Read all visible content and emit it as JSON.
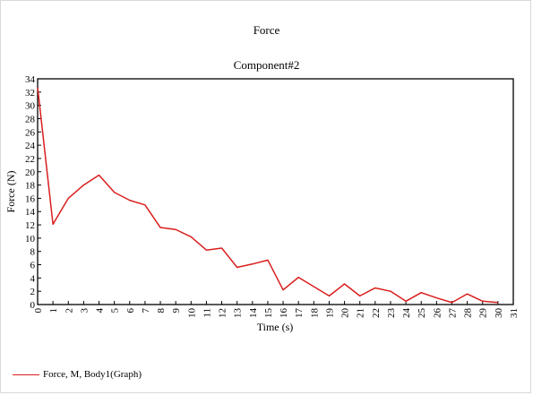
{
  "chart_data": {
    "type": "line",
    "title": "Force",
    "subtitle": "Component#2",
    "xlabel": "Time (s)",
    "ylabel": "Force (N)",
    "xlim": [
      0,
      31
    ],
    "ylim": [
      0,
      34
    ],
    "xticks": [
      0,
      1,
      2,
      3,
      4,
      5,
      6,
      7,
      8,
      9,
      10,
      11,
      12,
      13,
      14,
      15,
      16,
      17,
      18,
      19,
      20,
      21,
      22,
      23,
      24,
      25,
      26,
      27,
      28,
      29,
      30,
      31
    ],
    "yticks": [
      0,
      2,
      4,
      6,
      8,
      10,
      12,
      14,
      16,
      18,
      20,
      22,
      24,
      26,
      28,
      30,
      32,
      34
    ],
    "grid": false,
    "legend_position": "bottom-left",
    "series": [
      {
        "name": "Force, M, Body1(Graph)",
        "color": "#d91e1e",
        "x": [
          0,
          1,
          2,
          3,
          4,
          5,
          6,
          7,
          8,
          9,
          10,
          11,
          12,
          13,
          14,
          15,
          16,
          17,
          18,
          19,
          20,
          21,
          22,
          23,
          24,
          25,
          26,
          27,
          28,
          29,
          30
        ],
        "y": [
          32.7,
          12.1,
          16.0,
          18.0,
          19.5,
          16.9,
          15.7,
          15.0,
          11.6,
          11.3,
          10.2,
          8.2,
          8.5,
          5.6,
          6.1,
          6.7,
          2.2,
          4.1,
          2.7,
          1.3,
          3.1,
          1.3,
          2.5,
          2.0,
          0.5,
          1.8,
          1.0,
          0.3,
          1.6,
          0.5,
          0.3
        ]
      }
    ]
  }
}
